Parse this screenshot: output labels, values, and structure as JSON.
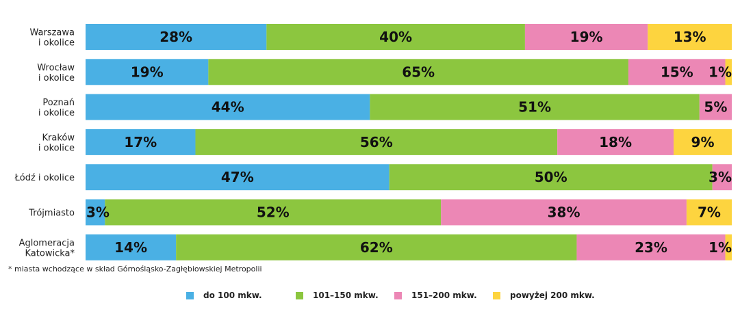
{
  "chart_data": {
    "type": "bar",
    "orientation": "horizontal",
    "stacked": true,
    "categories": [
      [
        "Warszawa",
        "i okolice"
      ],
      [
        "Wrocław",
        "i okolice"
      ],
      [
        "Poznań",
        "i okolice"
      ],
      [
        "Kraków",
        "i okolice"
      ],
      [
        "Łódź i okolice"
      ],
      [
        "Trójmiasto"
      ],
      [
        "Aglomeracja",
        "Katowicka*"
      ]
    ],
    "series": [
      {
        "name": "do 100 mkw.",
        "color": "#4ab0e4",
        "values": [
          28,
          19,
          44,
          17,
          47,
          3,
          14
        ]
      },
      {
        "name": "101–150 mkw.",
        "color": "#8cc63f",
        "values": [
          40,
          65,
          51,
          56,
          50,
          52,
          62
        ]
      },
      {
        "name": "151–200 mkw.",
        "color": "#ec87b5",
        "values": [
          19,
          15,
          5,
          18,
          3,
          38,
          23
        ]
      },
      {
        "name": "powyżej 200 mkw.",
        "color": "#fdd43f",
        "values": [
          13,
          1,
          0,
          9,
          0,
          7,
          1
        ]
      }
    ],
    "value_suffix": "%",
    "xlim": [
      0,
      100
    ],
    "grid": false,
    "legend_position": "bottom"
  },
  "footnote": "* miasta wchodzące w skład Górnośląsko-Zagłębiowskiej Metropolii"
}
